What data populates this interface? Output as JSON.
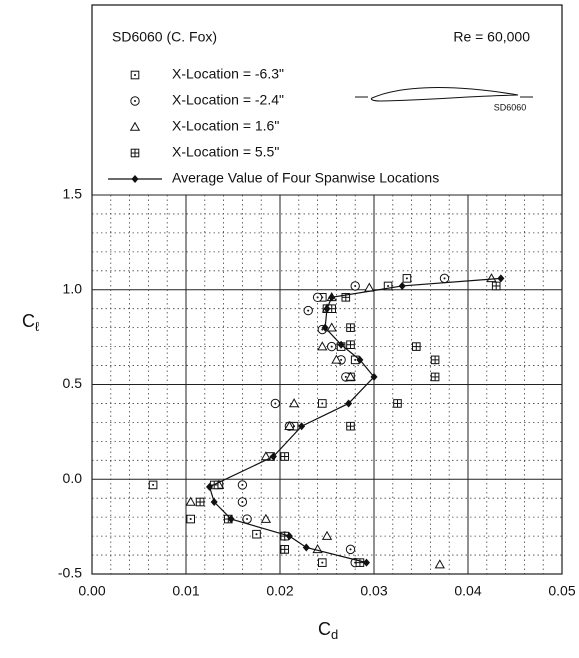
{
  "chart_data": {
    "type": "scatter",
    "title": "SD6060  (C. Fox)",
    "subtitle": "Re  =  60,000",
    "airfoil_label": "SD6060",
    "x_label": {
      "main": "C",
      "sub": "d"
    },
    "y_label": {
      "main": "C",
      "sub": "ℓ"
    },
    "xlim": [
      0,
      0.05
    ],
    "ylim": [
      -0.5,
      1.5
    ],
    "xticks": [
      {
        "value": 0,
        "label": "0.00"
      },
      0.01,
      0.02,
      0.03,
      0.04,
      0.05
    ],
    "yticks": [
      -0.5,
      {
        "value": 0,
        "label": "0.0"
      },
      0.5,
      {
        "value": 1,
        "label": "1.0"
      },
      1.5
    ],
    "grid": true,
    "minor_grid": true,
    "legend": "top",
    "series": [
      {
        "name": "X-Location = -6.3\"",
        "marker": "square-dot",
        "color": "#111",
        "x": [
          0.0335,
          0.0315,
          0.0245,
          0.025,
          0.0265,
          0.028,
          0.0275,
          0.0245,
          0.0215,
          0.019,
          0.0135,
          0.0065,
          0.0105,
          0.0175,
          0.0205,
          0.0245
        ],
        "values": [
          1.06,
          1.02,
          0.96,
          0.9,
          0.7,
          0.63,
          0.54,
          0.4,
          0.28,
          0.12,
          -0.03,
          -0.03,
          -0.21,
          -0.29,
          -0.37,
          -0.44
        ]
      },
      {
        "name": "X-Location = -2.4\"",
        "marker": "circle-dot",
        "color": "#111",
        "x": [
          0.0375,
          0.028,
          0.024,
          0.023,
          0.0245,
          0.0255,
          0.0265,
          0.027,
          0.0195,
          0.021,
          0.016,
          0.016,
          0.0165,
          0.0205,
          0.0275,
          0.028
        ],
        "values": [
          1.06,
          1.02,
          0.96,
          0.89,
          0.79,
          0.7,
          0.63,
          0.54,
          0.4,
          0.28,
          -0.03,
          -0.12,
          -0.21,
          -0.3,
          -0.37,
          -0.44
        ]
      },
      {
        "name": "X-Location =  1.6\"",
        "marker": "triangle",
        "color": "#111",
        "x": [
          0.0425,
          0.0295,
          0.0255,
          0.025,
          0.0255,
          0.0245,
          0.026,
          0.0275,
          0.0215,
          0.021,
          0.0185,
          0.0135,
          0.0105,
          0.0185,
          0.025,
          0.024,
          0.037
        ],
        "values": [
          1.06,
          1.01,
          0.96,
          0.9,
          0.8,
          0.7,
          0.63,
          0.54,
          0.4,
          0.28,
          0.12,
          -0.03,
          -0.12,
          -0.21,
          -0.3,
          -0.37,
          -0.45
        ]
      },
      {
        "name": "X-Location =  5.5\"",
        "marker": "square-plus",
        "color": "#111",
        "x": [
          0.043,
          0.027,
          0.0255,
          0.0275,
          0.0275,
          0.0345,
          0.0365,
          0.0365,
          0.0325,
          0.0275,
          0.0205,
          0.013,
          0.0115,
          0.0145,
          0.0205,
          0.0205,
          0.0285
        ],
        "values": [
          1.02,
          0.96,
          0.9,
          0.8,
          0.71,
          0.7,
          0.63,
          0.54,
          0.4,
          0.28,
          0.12,
          -0.03,
          -0.12,
          -0.21,
          -0.3,
          -0.37,
          -0.44
        ]
      },
      {
        "name": "Average Value of Four Spanwise Locations",
        "marker": "diamond",
        "line": true,
        "color": "#111",
        "x": [
          0.0435,
          0.033,
          0.0255,
          0.025,
          0.0248,
          0.0265,
          0.0285,
          0.03,
          0.0273,
          0.0223,
          0.0193,
          0.0125,
          0.013,
          0.0148,
          0.021,
          0.0228,
          0.0292
        ],
        "values": [
          1.06,
          1.02,
          0.96,
          0.9,
          0.8,
          0.71,
          0.63,
          0.54,
          0.4,
          0.28,
          0.12,
          -0.04,
          -0.12,
          -0.21,
          -0.3,
          -0.36,
          -0.44
        ]
      }
    ]
  }
}
